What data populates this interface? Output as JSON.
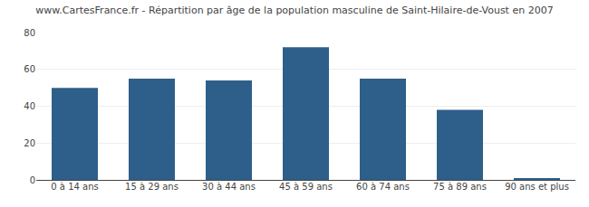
{
  "chart_data": {
    "type": "bar",
    "title": "www.CartesFrance.fr - Répartition par âge de la population masculine de Saint-Hilaire-de-Voust en 2007",
    "categories": [
      "0 à 14 ans",
      "15 à 29 ans",
      "30 à 44 ans",
      "45 à 59 ans",
      "60 à 74 ans",
      "75 à 89 ans",
      "90 ans et plus"
    ],
    "values": [
      50,
      55,
      54,
      72,
      55,
      38,
      1
    ],
    "color": "#2e5f8a",
    "ylim": [
      0,
      80
    ],
    "yticks": [
      0,
      20,
      40,
      60,
      80
    ],
    "grid": true
  }
}
